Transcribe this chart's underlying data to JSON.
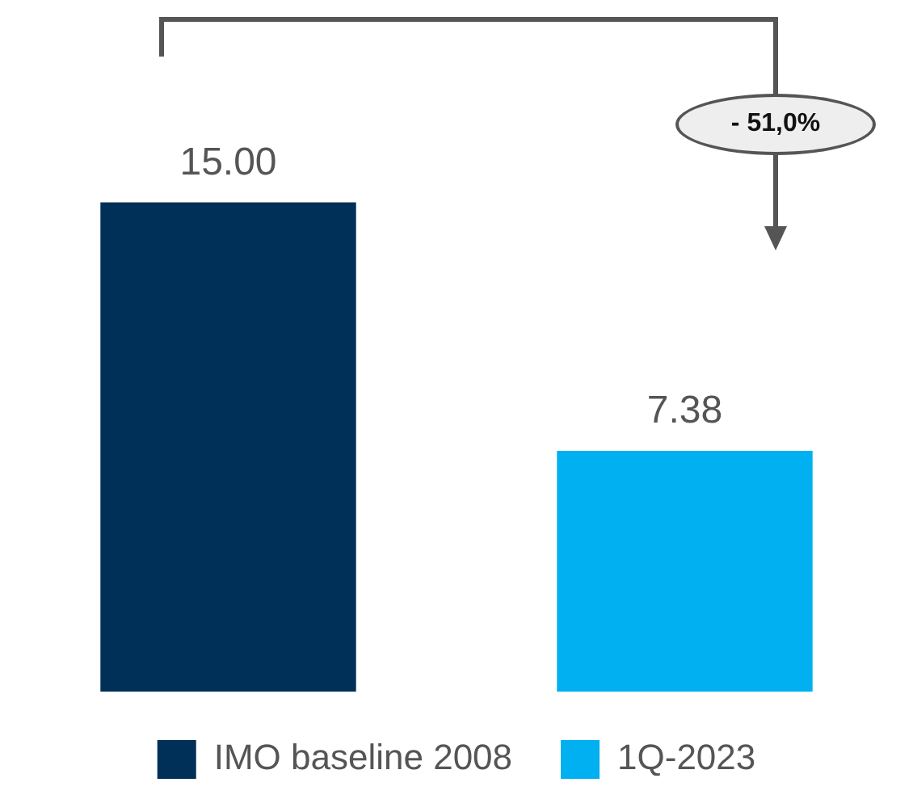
{
  "chart_data": {
    "type": "bar",
    "categories": [
      null,
      null
    ],
    "stacked": true,
    "series": [
      {
        "name": "IMO baseline 2008",
        "color": "#003057",
        "values": [
          15.0,
          null
        ],
        "value_labels": [
          "15.00",
          null
        ]
      },
      {
        "name": "1Q-2023",
        "color": "#00b0f0",
        "values": [
          null,
          7.38
        ],
        "value_labels": [
          null,
          "7.38"
        ]
      }
    ],
    "annotations": [
      "- 51,0%"
    ],
    "legend": "bottom"
  }
}
